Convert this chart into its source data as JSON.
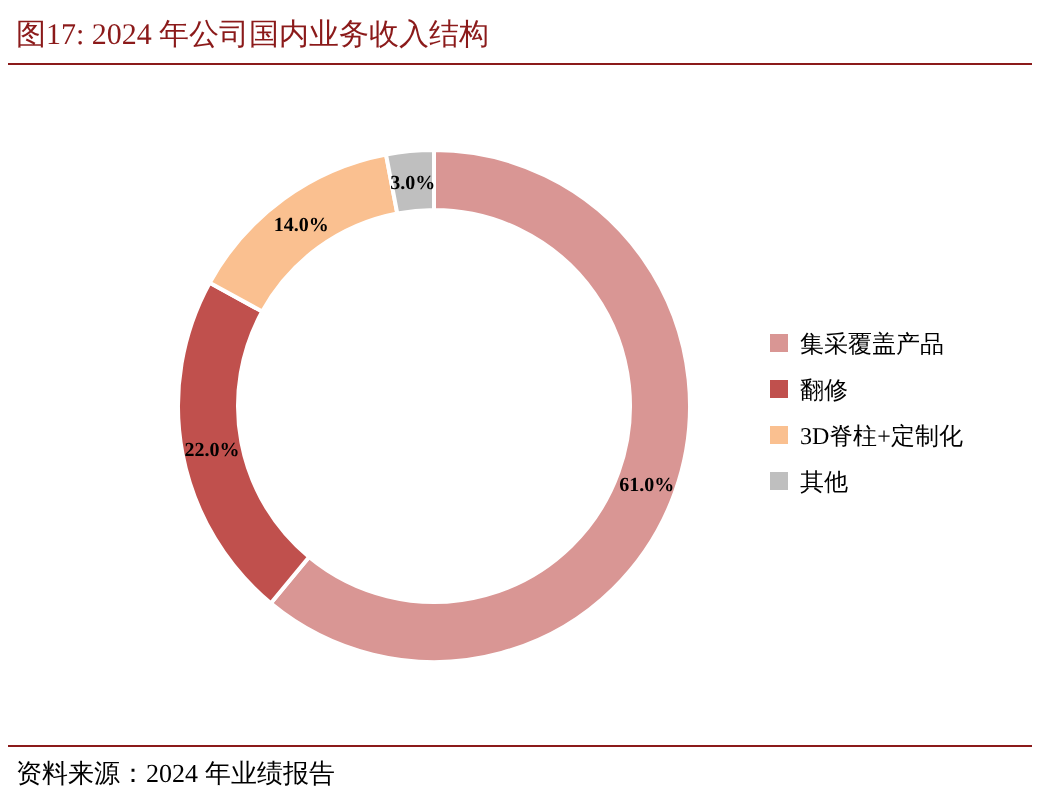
{
  "chart_data": {
    "type": "donut",
    "title": "图17:    2024 年公司国内业务收入结构",
    "categories": [
      "集采覆盖产品",
      "翻修",
      "3D脊柱+定制化",
      "其他"
    ],
    "values": [
      61,
      22,
      14,
      3
    ],
    "colors": [
      "#d99694",
      "#c0504d",
      "#fac090",
      "#bfbfbf"
    ],
    "value_labels": [
      "61.0%",
      "22.0%",
      "14.0%",
      "3.0%"
    ],
    "legend": "right",
    "annotations": [
      "资料来源：2024 年业绩报告"
    ]
  }
}
